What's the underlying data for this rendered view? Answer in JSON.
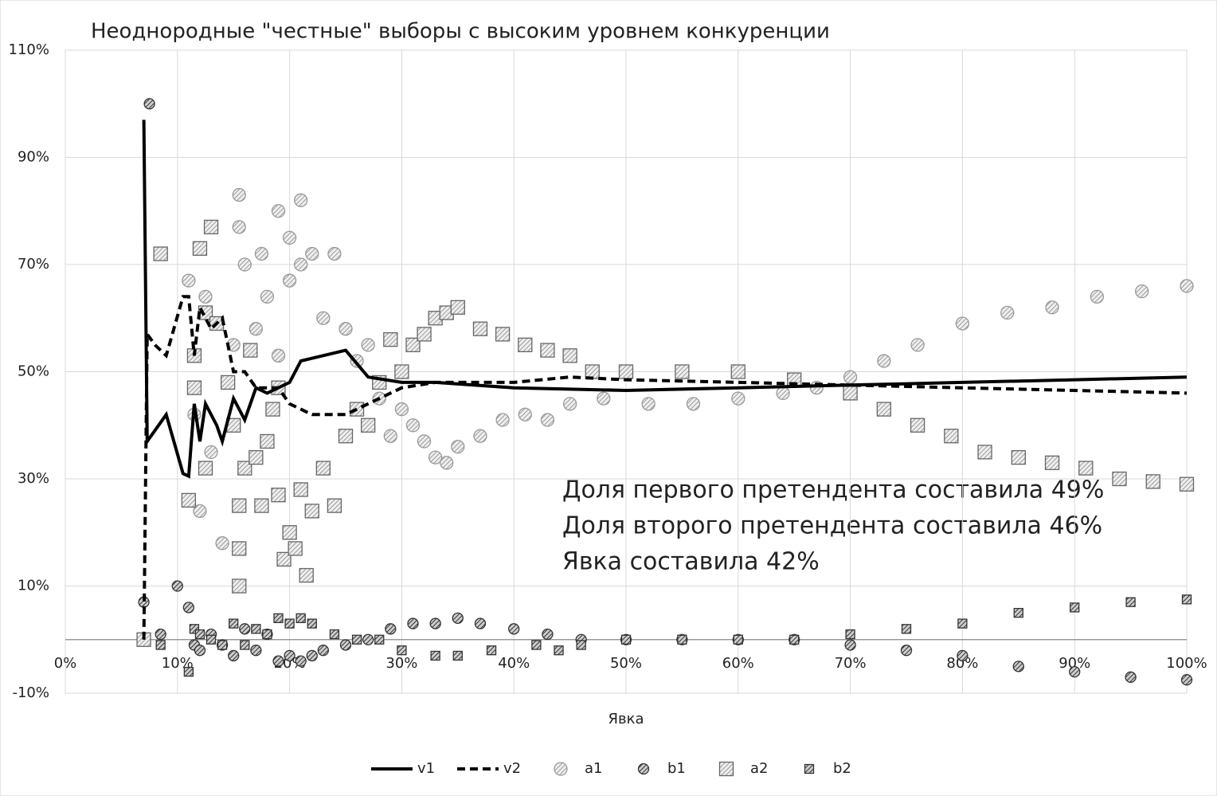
{
  "chart_data": {
    "type": "mixed",
    "title": "Неоднородные  \"честные\" выборы с высоким уровнем конкуренции",
    "x_label": "Явка",
    "annotations": [
      "Доля первого претендента составила 49%",
      "Доля второго претендента составила 46%",
      "Явка составила 42%"
    ],
    "xlim": [
      0,
      100
    ],
    "xticks": [
      {
        "value": 0,
        "label": "0%"
      },
      {
        "value": 10,
        "label": "10%"
      },
      {
        "value": 20,
        "label": "20%"
      },
      {
        "value": 30,
        "label": "30%"
      },
      {
        "value": 40,
        "label": "40%"
      },
      {
        "value": 50,
        "label": "50%"
      },
      {
        "value": 60,
        "label": "60%"
      },
      {
        "value": 70,
        "label": "70%"
      },
      {
        "value": 80,
        "label": "80%"
      },
      {
        "value": 90,
        "label": "90%"
      },
      {
        "value": 100,
        "label": "100%"
      }
    ],
    "ylim": [
      -10,
      110
    ],
    "yticks": [
      {
        "value": -10,
        "label": "-10%"
      },
      {
        "value": 10,
        "label": "10%"
      },
      {
        "value": 30,
        "label": "30%"
      },
      {
        "value": 50,
        "label": "50%"
      },
      {
        "value": 70,
        "label": "70%"
      },
      {
        "value": 90,
        "label": "90%"
      },
      {
        "value": 110,
        "label": "110%"
      }
    ],
    "grid": true,
    "legend": "bottom",
    "series": [
      {
        "name": "v1",
        "type": "line",
        "dash": false,
        "color": "#000000",
        "x": [
          7,
          7.3,
          9,
          10.5,
          11,
          11.5,
          12,
          12.5,
          13.5,
          14,
          15,
          16,
          17,
          18,
          20,
          21,
          23,
          25,
          27,
          30,
          33,
          40,
          50,
          60,
          70,
          80,
          90,
          100
        ],
        "values": [
          97,
          37,
          42,
          31,
          30.5,
          44,
          37,
          44,
          40,
          37,
          45,
          41,
          47,
          46,
          48,
          52,
          53,
          54,
          49,
          48,
          48,
          47,
          46.5,
          47,
          47.5,
          48,
          48.5,
          49
        ]
      },
      {
        "name": "v2",
        "type": "line",
        "dash": true,
        "color": "#000000",
        "x": [
          7,
          7.3,
          8,
          9,
          10.5,
          11,
          11.5,
          12,
          13,
          14,
          15,
          16,
          17,
          19,
          20,
          22,
          25,
          27,
          30,
          33,
          40,
          45,
          50,
          60,
          70,
          80,
          90,
          100
        ],
        "values": [
          0,
          57,
          55,
          53,
          64,
          64,
          53,
          62,
          58,
          60,
          50,
          50,
          47,
          47,
          44,
          42,
          42,
          44,
          47,
          48,
          48,
          49,
          48.5,
          48,
          47.5,
          47,
          46.5,
          46
        ]
      },
      {
        "name": "a1",
        "type": "scatter",
        "marker": "circle",
        "pattern": "light",
        "color": "#999999",
        "x": [
          11,
          11.5,
          12,
          12.5,
          13,
          14,
          15,
          15.5,
          15.5,
          16,
          17,
          17.5,
          18,
          19,
          19,
          20,
          20,
          21,
          21,
          22,
          23,
          24,
          25,
          26,
          27,
          28,
          29,
          30,
          31,
          32,
          33,
          34,
          35,
          37,
          39,
          41,
          43,
          45,
          48,
          52,
          56,
          60,
          64,
          67,
          70,
          73,
          76,
          80,
          84,
          88,
          92,
          96,
          100
        ],
        "values": [
          67,
          42,
          24,
          64,
          35,
          18,
          55,
          83,
          77,
          70,
          58,
          72,
          64,
          53,
          80,
          75,
          67,
          82,
          70,
          72,
          60,
          72,
          58,
          52,
          55,
          45,
          38,
          43,
          40,
          37,
          34,
          33,
          36,
          38,
          41,
          42,
          41,
          44,
          45,
          44,
          44,
          45,
          46,
          47,
          49,
          52,
          55,
          59,
          61,
          62,
          64,
          65,
          66
        ]
      },
      {
        "name": "b1",
        "type": "scatter",
        "marker": "circle",
        "pattern": "dark",
        "color": "#333333",
        "x": [
          7,
          7.5,
          8.5,
          10,
          11,
          11.5,
          12,
          13,
          14,
          15,
          16,
          17,
          18,
          19,
          20,
          21,
          22,
          23,
          25,
          27,
          29,
          31,
          33,
          35,
          37,
          40,
          43,
          46,
          50,
          55,
          60,
          65,
          70,
          75,
          80,
          85,
          90,
          95,
          100
        ],
        "values": [
          7,
          100,
          1,
          10,
          6,
          -1,
          -2,
          1,
          -1,
          -3,
          2,
          -2,
          1,
          -4,
          -3,
          -4,
          -3,
          -2,
          -1,
          0,
          2,
          3,
          3,
          4,
          3,
          2,
          1,
          0,
          0,
          0,
          0,
          0,
          -1,
          -2,
          -3,
          -5,
          -6,
          -7,
          -7.5
        ]
      },
      {
        "name": "a2",
        "type": "scatter",
        "marker": "square",
        "pattern": "light",
        "color": "#666666",
        "x": [
          7,
          8.5,
          11.5,
          11.5,
          11,
          12,
          12.5,
          12.5,
          13,
          13.5,
          14.5,
          15,
          15.5,
          15.5,
          15.5,
          16,
          16.5,
          17,
          17.5,
          18,
          18.5,
          19,
          19,
          19.5,
          20,
          20.5,
          21,
          21.5,
          22,
          23,
          24,
          25,
          26,
          27,
          28,
          29,
          30,
          31,
          32,
          33,
          34,
          35,
          37,
          39,
          41,
          43,
          45,
          47,
          50,
          55,
          60,
          65,
          70,
          73,
          76,
          79,
          82,
          85,
          88,
          91,
          94,
          97,
          100
        ],
        "values": [
          0,
          72,
          53,
          47,
          26,
          73,
          61,
          32,
          77,
          59,
          48,
          40,
          25,
          17,
          10,
          32,
          54,
          34,
          25,
          37,
          43,
          47,
          27,
          15,
          20,
          17,
          28,
          12,
          24,
          32,
          25,
          38,
          43,
          40,
          48,
          56,
          50,
          55,
          57,
          60,
          61,
          62,
          58,
          57,
          55,
          54,
          53,
          50,
          50,
          50,
          50,
          48.5,
          46,
          43,
          40,
          38,
          35,
          34,
          33,
          32,
          30,
          29.5,
          29
        ]
      },
      {
        "name": "b2",
        "type": "scatter",
        "marker": "square",
        "pattern": "dark",
        "color": "#333333",
        "x": [
          8.5,
          11,
          11.5,
          12,
          13,
          14,
          15,
          16,
          17,
          18,
          19,
          20,
          21,
          22,
          24,
          26,
          28,
          30,
          33,
          35,
          38,
          42,
          44,
          46,
          50,
          55,
          60,
          65,
          70,
          75,
          80,
          85,
          90,
          95,
          100
        ],
        "values": [
          -1,
          -6,
          2,
          1,
          0,
          -1,
          3,
          -1,
          2,
          1,
          4,
          3,
          4,
          3,
          1,
          0,
          0,
          -2,
          -3,
          -3,
          -2,
          -1,
          -2,
          -1,
          0,
          0,
          0,
          0,
          1,
          2,
          3,
          5,
          6,
          7,
          7.5
        ]
      }
    ]
  }
}
